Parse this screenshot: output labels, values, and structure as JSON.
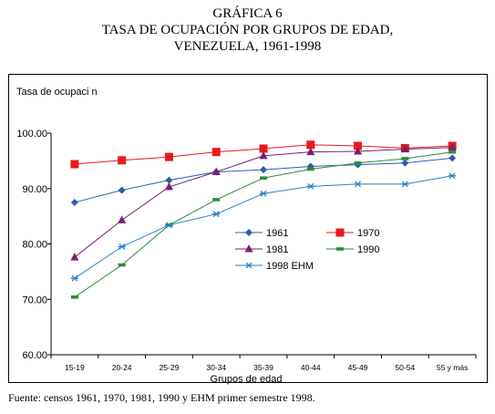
{
  "header": {
    "title_line1": "GRÁFICA 6",
    "title_line2": "TASA DE OCUPACIÓN POR GRUPOS DE EDAD,",
    "title_line3": "VENEZUELA, 1961-1998"
  },
  "source_note": "Fuente: censos 1961, 1970, 1981, 1990 y EHM primer semestre 1998.",
  "chart_data": {
    "type": "line",
    "ylabel": "Tasa de ocupaci n",
    "xlabel": "Grupos de edad",
    "categories": [
      "15-19",
      "20-24",
      "25-29",
      "30-34",
      "35-39",
      "40-44",
      "45-49",
      "50-54",
      "55 y más"
    ],
    "ylim": [
      60,
      100
    ],
    "yticks": [
      "60.00",
      "70.00",
      "80.00",
      "90.00",
      "100.00"
    ],
    "grid": false,
    "legend_position": "center-right",
    "series": [
      {
        "name": "1961",
        "color": "#2a5db0",
        "marker": "diamond",
        "values": [
          87.5,
          89.7,
          91.5,
          93.0,
          93.4,
          94.0,
          94.3,
          94.6,
          95.5
        ]
      },
      {
        "name": "1970",
        "color": "#e8191b",
        "marker": "square",
        "values": [
          94.4,
          95.1,
          95.7,
          96.6,
          97.2,
          97.9,
          97.7,
          97.3,
          97.7
        ]
      },
      {
        "name": "1981",
        "color": "#7b1f6e",
        "marker": "triangle",
        "values": [
          77.6,
          84.3,
          90.3,
          93.0,
          95.9,
          96.6,
          96.7,
          97.1,
          97.4
        ]
      },
      {
        "name": "1990",
        "color": "#2f8a3a",
        "marker": "dash",
        "values": [
          70.4,
          76.2,
          83.4,
          88.0,
          91.9,
          93.5,
          94.6,
          95.4,
          96.6
        ]
      },
      {
        "name": "1998 EHM",
        "color": "#2b82c9",
        "marker": "asterisk",
        "values": [
          73.8,
          79.5,
          83.4,
          85.4,
          89.1,
          90.4,
          90.8,
          90.8,
          92.3
        ]
      }
    ]
  }
}
